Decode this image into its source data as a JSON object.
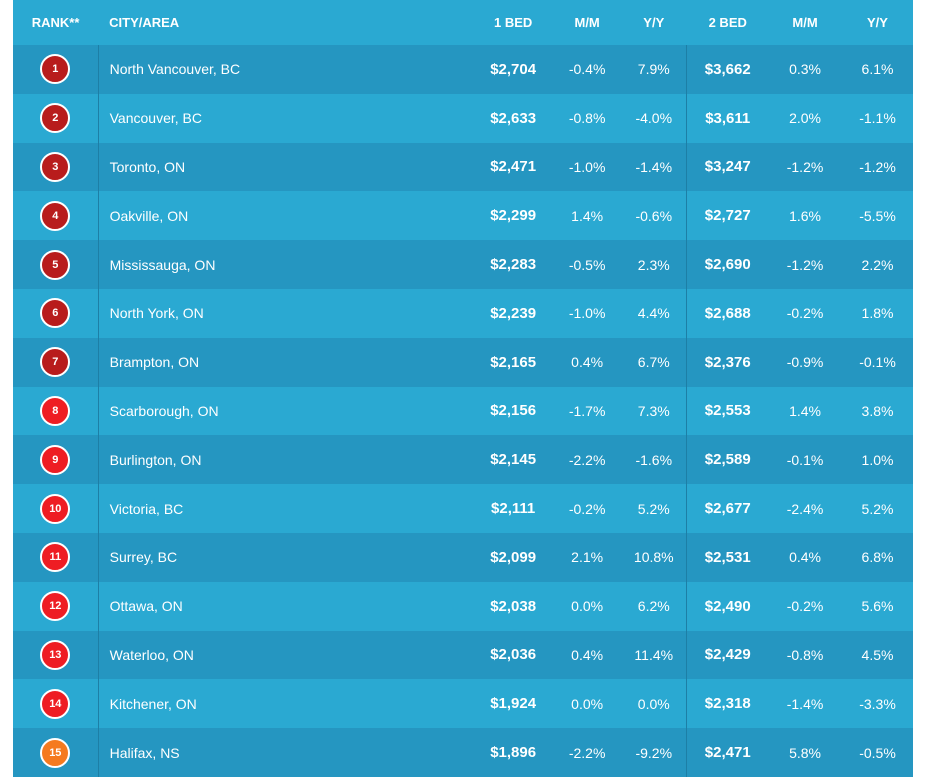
{
  "table": {
    "headers": {
      "rank": "RANK**",
      "city": "CITY/AREA",
      "bed1": "1 BED",
      "mm1": "M/M",
      "yy1": "Y/Y",
      "bed2": "2 BED",
      "mm2": "M/M",
      "yy2": "Y/Y"
    },
    "badge_colors": {
      "dark_red": "#b81c1c",
      "red": "#ee1d23",
      "orange": "#f57a1f"
    },
    "rows": [
      {
        "rank": "1",
        "badge": "dark_red",
        "city": "North Vancouver, BC",
        "bed1": "$2,704",
        "mm1": "-0.4%",
        "yy1": "7.9%",
        "bed2": "$3,662",
        "mm2": "0.3%",
        "yy2": "6.1%"
      },
      {
        "rank": "2",
        "badge": "dark_red",
        "city": "Vancouver, BC",
        "bed1": "$2,633",
        "mm1": "-0.8%",
        "yy1": "-4.0%",
        "bed2": "$3,611",
        "mm2": "2.0%",
        "yy2": "-1.1%"
      },
      {
        "rank": "3",
        "badge": "dark_red",
        "city": "Toronto, ON",
        "bed1": "$2,471",
        "mm1": "-1.0%",
        "yy1": "-1.4%",
        "bed2": "$3,247",
        "mm2": "-1.2%",
        "yy2": "-1.2%"
      },
      {
        "rank": "4",
        "badge": "dark_red",
        "city": "Oakville, ON",
        "bed1": "$2,299",
        "mm1": "1.4%",
        "yy1": "-0.6%",
        "bed2": "$2,727",
        "mm2": "1.6%",
        "yy2": "-5.5%"
      },
      {
        "rank": "5",
        "badge": "dark_red",
        "city": "Mississauga, ON",
        "bed1": "$2,283",
        "mm1": "-0.5%",
        "yy1": "2.3%",
        "bed2": "$2,690",
        "mm2": "-1.2%",
        "yy2": "2.2%"
      },
      {
        "rank": "6",
        "badge": "dark_red",
        "city": "North York, ON",
        "bed1": "$2,239",
        "mm1": "-1.0%",
        "yy1": "4.4%",
        "bed2": "$2,688",
        "mm2": "-0.2%",
        "yy2": "1.8%"
      },
      {
        "rank": "7",
        "badge": "dark_red",
        "city": "Brampton, ON",
        "bed1": "$2,165",
        "mm1": "0.4%",
        "yy1": "6.7%",
        "bed2": "$2,376",
        "mm2": "-0.9%",
        "yy2": "-0.1%"
      },
      {
        "rank": "8",
        "badge": "red",
        "city": "Scarborough, ON",
        "bed1": "$2,156",
        "mm1": "-1.7%",
        "yy1": "7.3%",
        "bed2": "$2,553",
        "mm2": "1.4%",
        "yy2": "3.8%"
      },
      {
        "rank": "9",
        "badge": "red",
        "city": "Burlington, ON",
        "bed1": "$2,145",
        "mm1": "-2.2%",
        "yy1": "-1.6%",
        "bed2": "$2,589",
        "mm2": "-0.1%",
        "yy2": "1.0%"
      },
      {
        "rank": "10",
        "badge": "red",
        "city": "Victoria, BC",
        "bed1": "$2,111",
        "mm1": "-0.2%",
        "yy1": "5.2%",
        "bed2": "$2,677",
        "mm2": "-2.4%",
        "yy2": "5.2%"
      },
      {
        "rank": "11",
        "badge": "red",
        "city": "Surrey, BC",
        "bed1": "$2,099",
        "mm1": "2.1%",
        "yy1": "10.8%",
        "bed2": "$2,531",
        "mm2": "0.4%",
        "yy2": "6.8%"
      },
      {
        "rank": "12",
        "badge": "red",
        "city": "Ottawa, ON",
        "bed1": "$2,038",
        "mm1": "0.0%",
        "yy1": "6.2%",
        "bed2": "$2,490",
        "mm2": "-0.2%",
        "yy2": "5.6%"
      },
      {
        "rank": "13",
        "badge": "red",
        "city": "Waterloo, ON",
        "bed1": "$2,036",
        "mm1": "0.4%",
        "yy1": "11.4%",
        "bed2": "$2,429",
        "mm2": "-0.8%",
        "yy2": "4.5%"
      },
      {
        "rank": "14",
        "badge": "red",
        "city": "Kitchener, ON",
        "bed1": "$1,924",
        "mm1": "0.0%",
        "yy1": "0.0%",
        "bed2": "$2,318",
        "mm2": "-1.4%",
        "yy2": "-3.3%"
      },
      {
        "rank": "15",
        "badge": "orange",
        "city": "Halifax, NS",
        "bed1": "$1,896",
        "mm1": "-2.2%",
        "yy1": "-9.2%",
        "bed2": "$2,471",
        "mm2": "5.8%",
        "yy2": "-0.5%"
      }
    ]
  }
}
